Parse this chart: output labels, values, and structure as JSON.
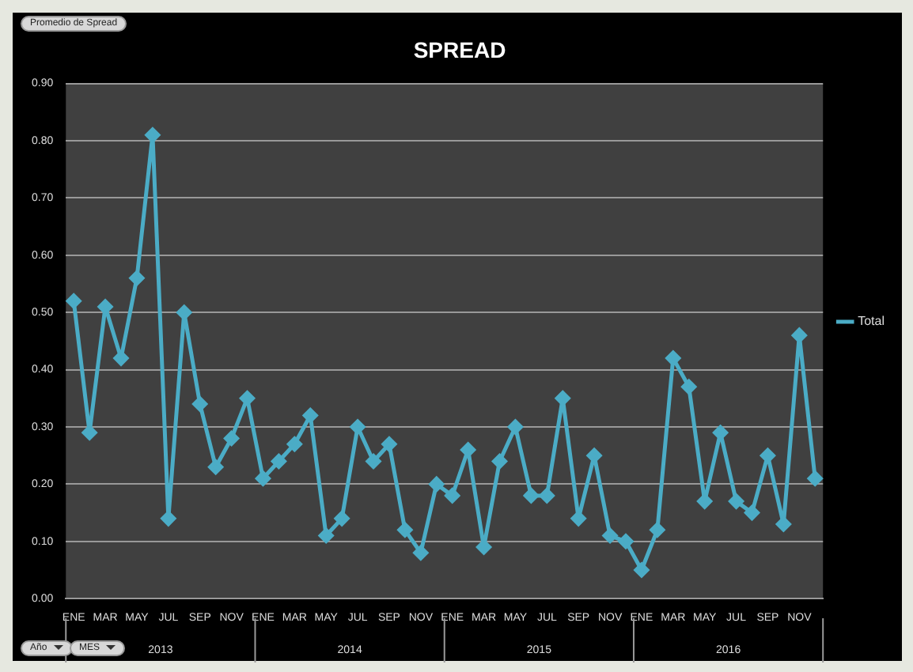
{
  "chart_data": {
    "type": "line",
    "title": "SPREAD",
    "categories": [
      "ENE",
      null,
      "MAR",
      null,
      "MAY",
      null,
      "JUL",
      null,
      "SEP",
      null,
      "NOV",
      null,
      "ENE",
      null,
      "MAR",
      null,
      "MAY",
      null,
      "JUL",
      null,
      "SEP",
      null,
      "NOV",
      null,
      "ENE",
      null,
      "MAR",
      null,
      "MAY",
      null,
      "JUL",
      null,
      "SEP",
      null,
      "NOV",
      null,
      "ENE",
      null,
      "MAR",
      null,
      "MAY",
      null,
      "JUL",
      null,
      "SEP",
      null,
      "NOV",
      null
    ],
    "series": [
      {
        "name": "Total",
        "color": "#4bacc6",
        "values": [
          0.52,
          0.29,
          0.51,
          0.42,
          0.56,
          0.81,
          0.14,
          0.5,
          0.34,
          0.23,
          0.28,
          0.35,
          0.21,
          0.24,
          0.27,
          0.32,
          0.11,
          0.14,
          0.3,
          0.24,
          0.27,
          0.12,
          0.08,
          0.2,
          0.18,
          0.26,
          0.09,
          0.24,
          0.3,
          0.18,
          0.18,
          0.35,
          0.14,
          0.25,
          0.11,
          0.1,
          0.05,
          0.12,
          0.42,
          0.37,
          0.17,
          0.29,
          0.17,
          0.15,
          0.25,
          0.13,
          0.46,
          0.21
        ]
      }
    ],
    "ylim": [
      0,
      0.9
    ],
    "yticks": [
      {
        "value": 0,
        "label": "0.00"
      },
      {
        "value": 0.1,
        "label": "0.10"
      },
      {
        "value": 0.2,
        "label": "0.20"
      },
      {
        "value": 0.3,
        "label": "0.30"
      },
      {
        "value": 0.4,
        "label": "0.40"
      },
      {
        "value": 0.5,
        "label": "0.50"
      },
      {
        "value": 0.6,
        "label": "0.60"
      },
      {
        "value": 0.7,
        "label": "0.70"
      },
      {
        "value": 0.8,
        "label": "0.80"
      },
      {
        "value": 0.9,
        "label": "0.90"
      }
    ],
    "grid": "y",
    "legend": "right",
    "marker": "diamond",
    "line_style": "solid",
    "annotations": [
      "Promedio de Spread",
      "Año",
      "MES",
      "2013",
      "2014",
      "2015",
      "2016"
    ]
  }
}
